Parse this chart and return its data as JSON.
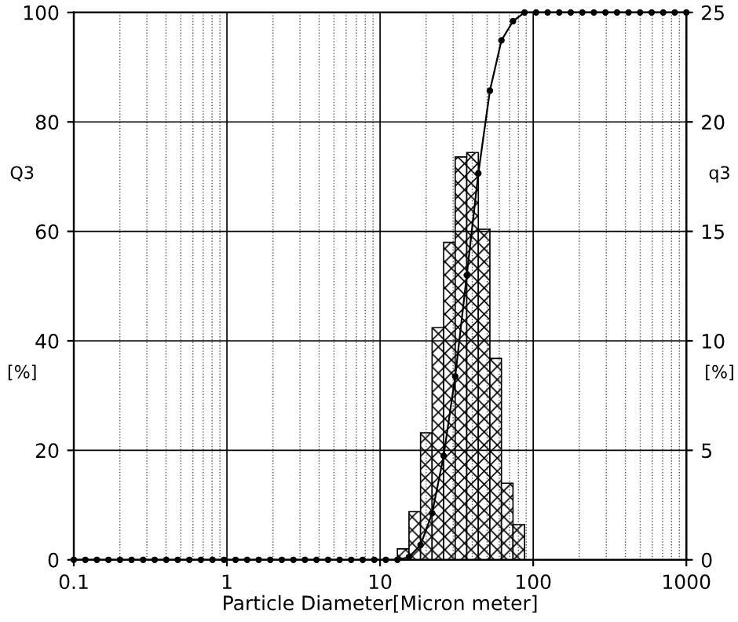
{
  "chart_data": {
    "type": "histogram",
    "xlabel": "Particle Diameter[Micron meter]",
    "ylabel": "Q3",
    "y2label": "q3",
    "annotations": [
      "[%]",
      "[%]"
    ],
    "log": "x",
    "grid": true,
    "xlim": [
      0.1,
      1000
    ],
    "xticks": [
      0.1,
      1,
      10,
      100,
      1000
    ],
    "ylim": [
      0,
      100
    ],
    "yticks": [
      0,
      20,
      40,
      60,
      80,
      100
    ],
    "y2lim": [
      0,
      25
    ],
    "y2ticks": [
      0,
      5,
      10,
      15,
      20,
      25
    ],
    "series": [
      {
        "type": "histogram",
        "axis": "y2",
        "color": "#000000",
        "bins": [
          12.98,
          15.45,
          18.38,
          21.87,
          26.02,
          30.95,
          36.83,
          43.82,
          52.13,
          62.03,
          73.8,
          87.81
        ],
        "values": [
          0.5,
          2.2,
          5.8,
          10.6,
          14.5,
          18.4,
          18.6,
          15.1,
          9.2,
          3.5,
          1.6
        ]
      },
      {
        "type": "line",
        "axis": "y",
        "color": "#000000",
        "marker": "circle",
        "line_style": "solid",
        "x": [
          0.1,
          0.119,
          0.1416,
          0.1684,
          0.2004,
          0.2384,
          0.2837,
          0.3375,
          0.4016,
          0.4778,
          0.5685,
          0.6764,
          0.8048,
          0.9575,
          1.139,
          1.356,
          1.613,
          1.919,
          2.283,
          2.717,
          3.232,
          3.846,
          4.576,
          5.444,
          6.478,
          7.707,
          9.17,
          10.91,
          12.98,
          15.45,
          18.38,
          21.87,
          26.02,
          30.95,
          36.83,
          43.82,
          52.13,
          62.03,
          73.8,
          87.81,
          104.4,
          124.3,
          147.9,
          175.9,
          209.3,
          249.0,
          296.3,
          352.5,
          419.3,
          498.9,
          593.6,
          706.2,
          840.2,
          1000
        ],
        "values": [
          0,
          0,
          0,
          0,
          0,
          0,
          0,
          0,
          0,
          0,
          0,
          0,
          0,
          0,
          0,
          0,
          0,
          0,
          0,
          0,
          0,
          0,
          0,
          0,
          0,
          0,
          0,
          0,
          0,
          0.5,
          2.7,
          8.5,
          19,
          33.5,
          52,
          70.6,
          85.7,
          94.9,
          98.4,
          100,
          100,
          100,
          100,
          100,
          100,
          100,
          100,
          100,
          100,
          100,
          100,
          100,
          100,
          100
        ]
      }
    ]
  }
}
